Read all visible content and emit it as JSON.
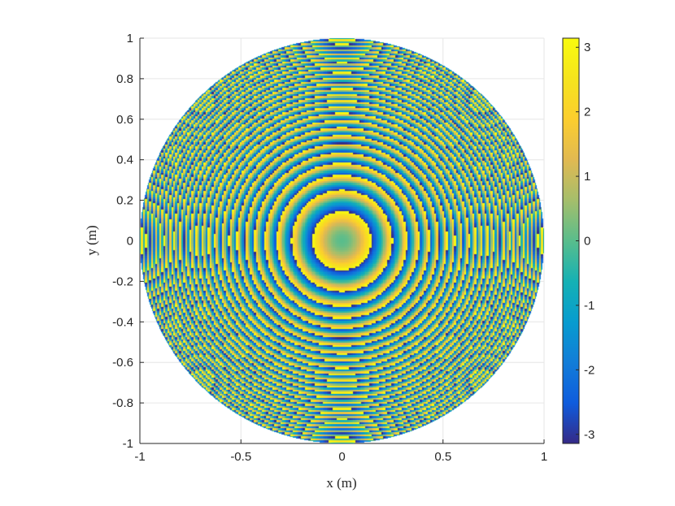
{
  "chart_data": {
    "type": "heatmap",
    "title": "",
    "xlabel": "x (m)",
    "ylabel": "y (m)",
    "xlim": [
      -1,
      1
    ],
    "ylim": [
      -1,
      1
    ],
    "xticks": [
      -1,
      -0.5,
      0,
      0.5,
      1
    ],
    "xtick_labels": [
      "-1",
      "-0.5",
      "0",
      "0.5",
      "1"
    ],
    "yticks": [
      1,
      0.8,
      0.6,
      0.4,
      0.2,
      0,
      -0.2,
      -0.4,
      -0.6,
      -0.8,
      -1
    ],
    "ytick_labels": [
      "1",
      "0.8",
      "0.6",
      "0.4",
      "0.2",
      "0",
      "-0.2",
      "-0.4",
      "-0.6",
      "-0.8",
      "-1"
    ],
    "grid": true,
    "domain": "circular aperture, radius 1",
    "colormap": "parula",
    "colorbar": {
      "range": [
        -3.1416,
        3.1416
      ],
      "ticks": [
        3,
        2,
        1,
        0,
        -1,
        -2,
        -3
      ],
      "tick_labels": [
        "3",
        "2",
        "1",
        "0",
        "-1",
        "-2",
        "-3"
      ],
      "placement": "right"
    },
    "field": "wrapped phase, approx. 150*(x^2+y^2) (mod 2*pi) sampled on a coarse grid",
    "colors": {
      "low": "#352a87",
      "mid": "#12bea4",
      "high": "#f9fb0e",
      "axis": "#262626",
      "grid": "#e6e6e6"
    }
  }
}
